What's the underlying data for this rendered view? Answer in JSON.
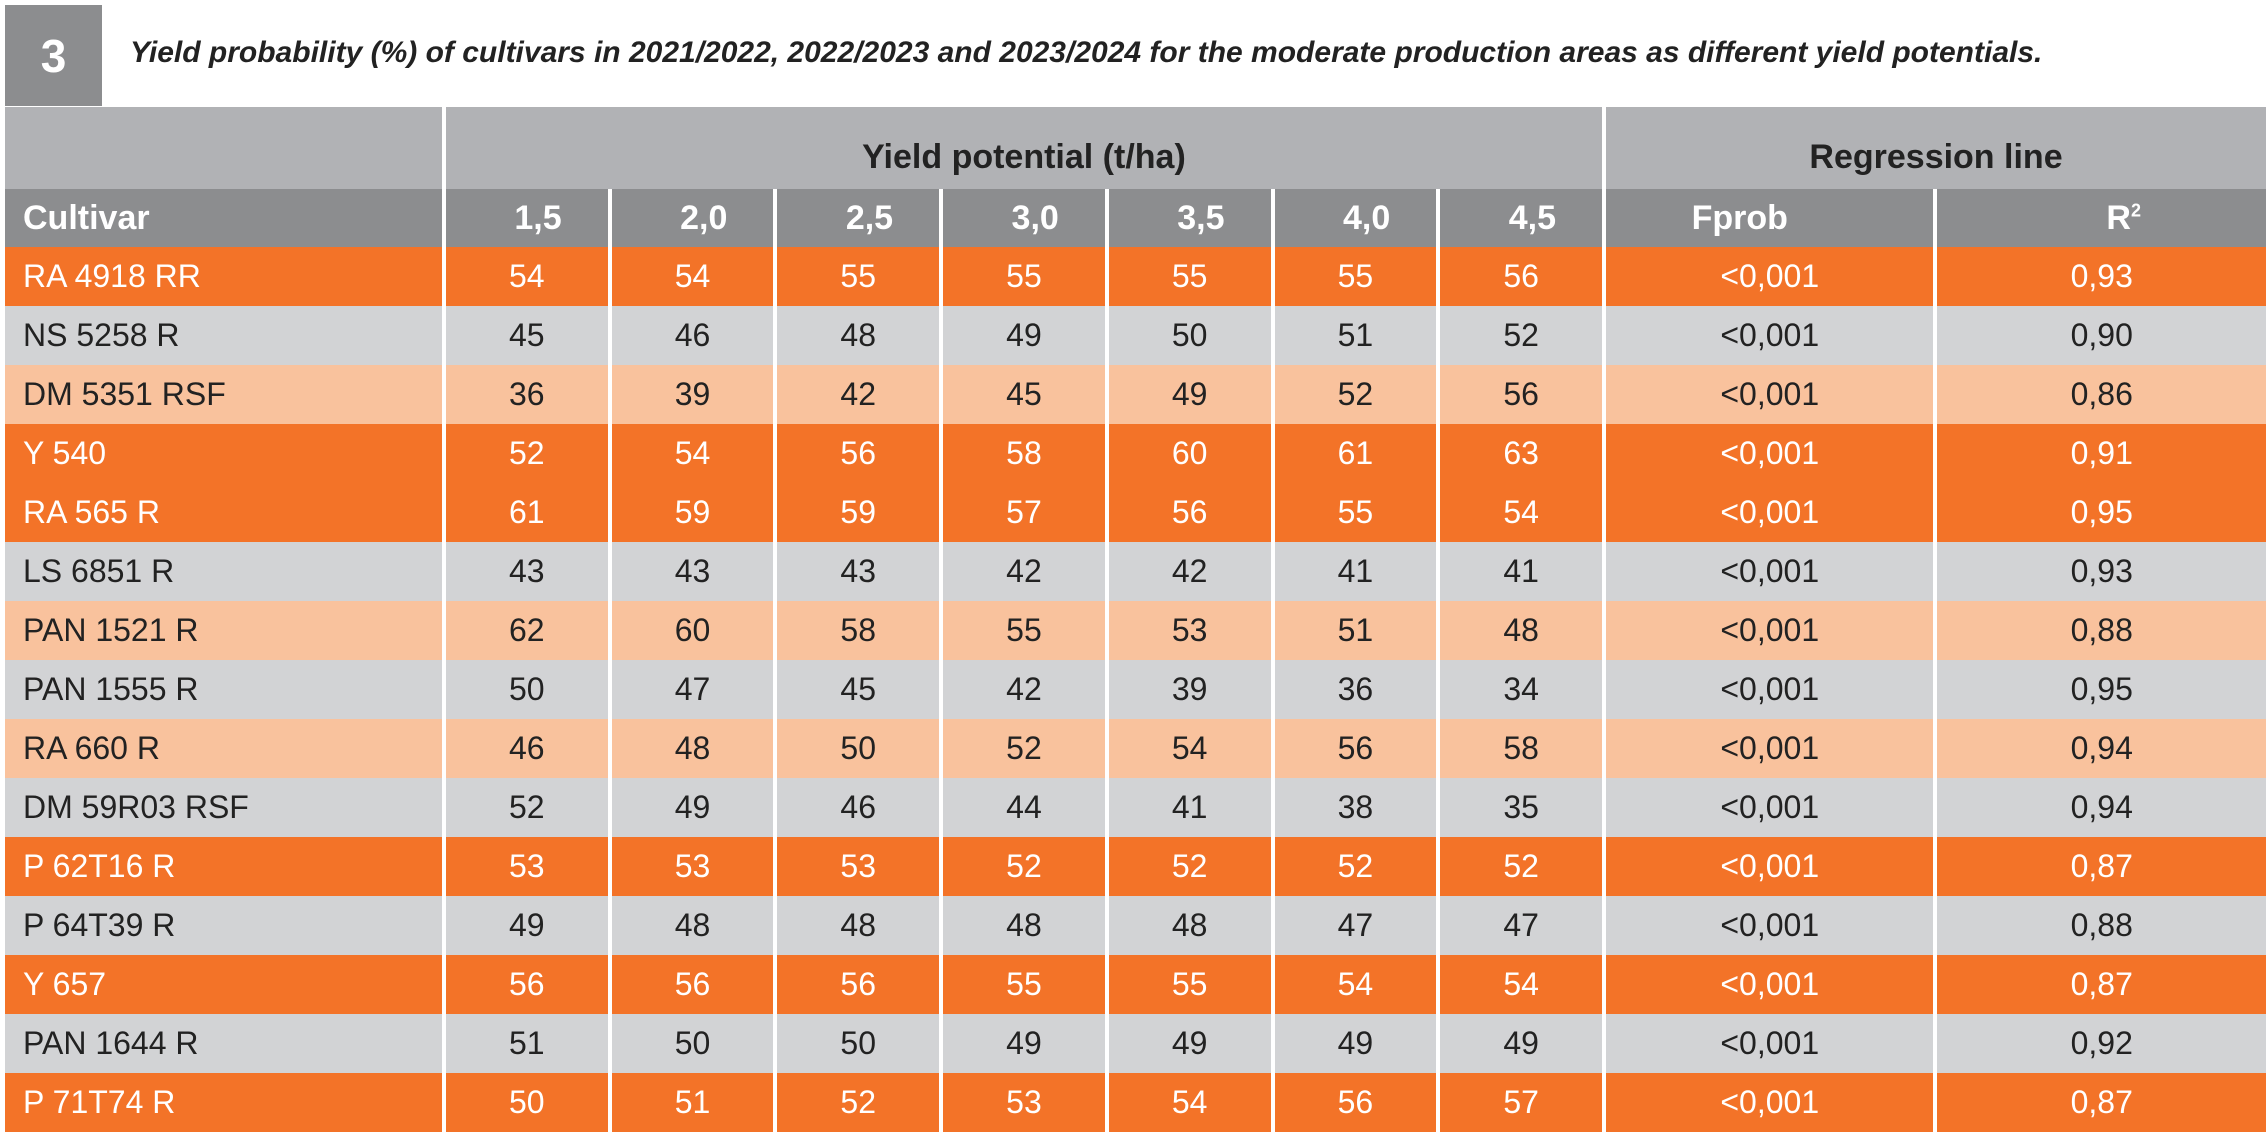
{
  "title": {
    "number": "3",
    "text": "Yield probability (%) of cultivars in 2021/2022, 2022/2023 and 2023/2024 for the moderate production areas as different yield potentials."
  },
  "header": {
    "group_yield": "Yield potential (t/ha)",
    "group_regression": "Regression line",
    "cultivar": "Cultivar",
    "potentials": [
      "1,5",
      "2,0",
      "2,5",
      "3,0",
      "3,5",
      "4,0",
      "4,5"
    ],
    "fprob": "Fprob",
    "r2_base": "R",
    "r2_sup": "2"
  },
  "rows": [
    {
      "cultivar": "RA 4918 RR",
      "values": [
        "54",
        "54",
        "55",
        "55",
        "55",
        "55",
        "56"
      ],
      "fprob": "<0,001",
      "r2": "0,93",
      "style": "dark"
    },
    {
      "cultivar": "NS 5258 R",
      "values": [
        "45",
        "46",
        "48",
        "49",
        "50",
        "51",
        "52"
      ],
      "fprob": "<0,001",
      "r2": "0,90",
      "style": "grey"
    },
    {
      "cultivar": "DM 5351 RSF",
      "values": [
        "36",
        "39",
        "42",
        "45",
        "49",
        "52",
        "56"
      ],
      "fprob": "<0,001",
      "r2": "0,86",
      "style": "light"
    },
    {
      "cultivar": "Y 540",
      "values": [
        "52",
        "54",
        "56",
        "58",
        "60",
        "61",
        "63"
      ],
      "fprob": "<0,001",
      "r2": "0,91",
      "style": "dark"
    },
    {
      "cultivar": "RA 565 R",
      "values": [
        "61",
        "59",
        "59",
        "57",
        "56",
        "55",
        "54"
      ],
      "fprob": "<0,001",
      "r2": "0,95",
      "style": "dark"
    },
    {
      "cultivar": "LS 6851 R",
      "values": [
        "43",
        "43",
        "43",
        "42",
        "42",
        "41",
        "41"
      ],
      "fprob": "<0,001",
      "r2": "0,93",
      "style": "grey"
    },
    {
      "cultivar": "PAN 1521 R",
      "values": [
        "62",
        "60",
        "58",
        "55",
        "53",
        "51",
        "48"
      ],
      "fprob": "<0,001",
      "r2": "0,88",
      "style": "light"
    },
    {
      "cultivar": "PAN 1555 R",
      "values": [
        "50",
        "47",
        "45",
        "42",
        "39",
        "36",
        "34"
      ],
      "fprob": "<0,001",
      "r2": "0,95",
      "style": "grey"
    },
    {
      "cultivar": "RA 660 R",
      "values": [
        "46",
        "48",
        "50",
        "52",
        "54",
        "56",
        "58"
      ],
      "fprob": "<0,001",
      "r2": "0,94",
      "style": "light"
    },
    {
      "cultivar": "DM 59R03 RSF",
      "values": [
        "52",
        "49",
        "46",
        "44",
        "41",
        "38",
        "35"
      ],
      "fprob": "<0,001",
      "r2": "0,94",
      "style": "grey"
    },
    {
      "cultivar": "P 62T16 R",
      "values": [
        "53",
        "53",
        "53",
        "52",
        "52",
        "52",
        "52"
      ],
      "fprob": "<0,001",
      "r2": "0,87",
      "style": "dark"
    },
    {
      "cultivar": "P 64T39 R",
      "values": [
        "49",
        "48",
        "48",
        "48",
        "48",
        "47",
        "47"
      ],
      "fprob": "<0,001",
      "r2": "0,88",
      "style": "grey"
    },
    {
      "cultivar": "Y 657",
      "values": [
        "56",
        "56",
        "56",
        "55",
        "55",
        "54",
        "54"
      ],
      "fprob": "<0,001",
      "r2": "0,87",
      "style": "dark"
    },
    {
      "cultivar": "PAN 1644 R",
      "values": [
        "51",
        "50",
        "50",
        "49",
        "49",
        "49",
        "49"
      ],
      "fprob": "<0,001",
      "r2": "0,92",
      "style": "grey"
    },
    {
      "cultivar": "P 71T74 R",
      "values": [
        "50",
        "51",
        "52",
        "53",
        "54",
        "56",
        "57"
      ],
      "fprob": "<0,001",
      "r2": "0,87",
      "style": "dark"
    }
  ]
}
